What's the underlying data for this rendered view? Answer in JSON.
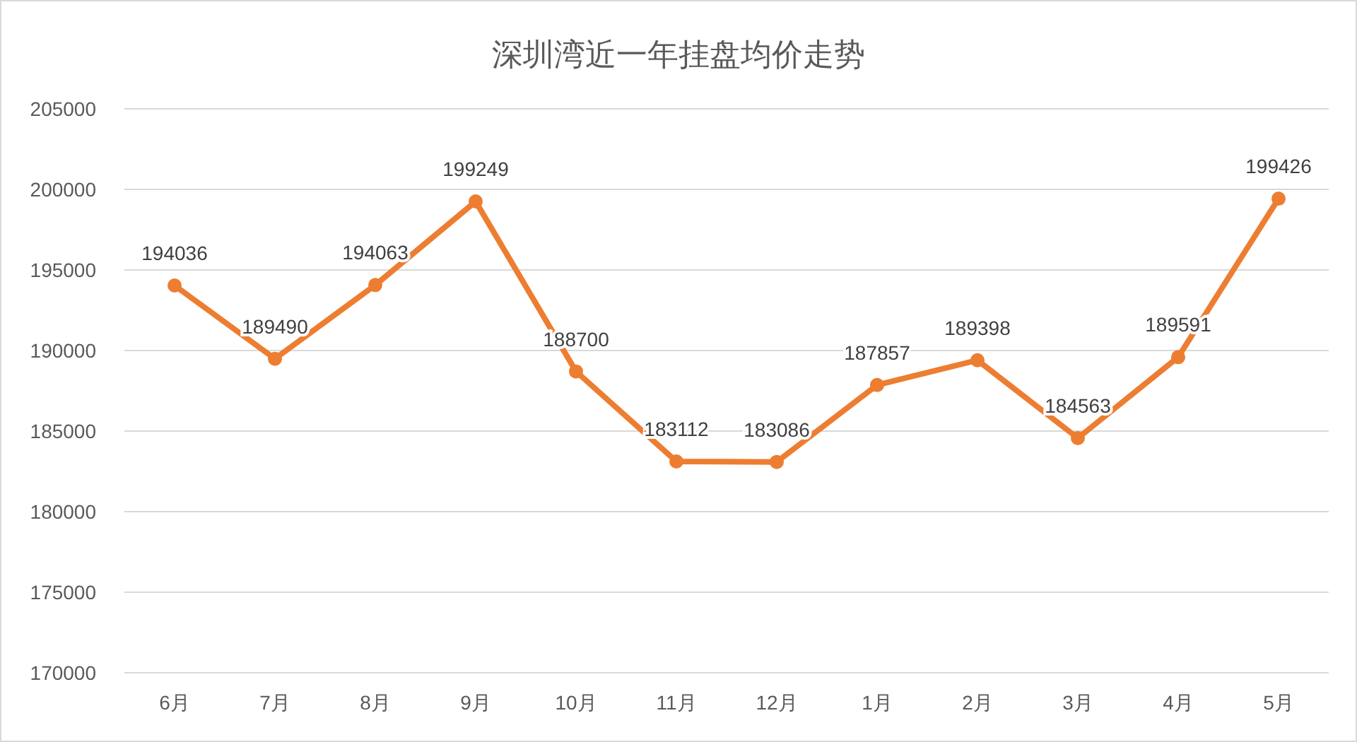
{
  "chart_data": {
    "type": "line",
    "title": "深圳湾近一年挂盘均价走势",
    "categories": [
      "6月",
      "7月",
      "8月",
      "9月",
      "10月",
      "11月",
      "12月",
      "1月",
      "2月",
      "3月",
      "4月",
      "5月"
    ],
    "values": [
      194036,
      189490,
      194063,
      199249,
      188700,
      183112,
      183086,
      187857,
      189398,
      184563,
      189591,
      199426
    ],
    "color": "#ed7d31",
    "ylim": [
      170000,
      205000
    ],
    "yticks": [
      170000,
      175000,
      180000,
      185000,
      190000,
      195000,
      200000,
      205000
    ],
    "grid": "y",
    "marker": "circle",
    "line_style": "solid",
    "data_labels": true
  }
}
